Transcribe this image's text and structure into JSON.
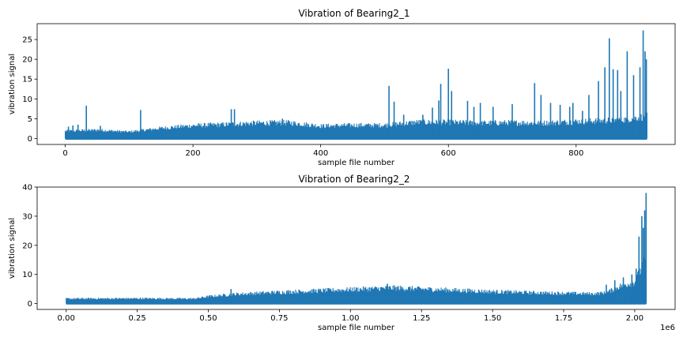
{
  "chart_data": [
    {
      "type": "line",
      "title": "Vibration of Bearing2_1",
      "xlabel": "sample file number",
      "ylabel": "vibration signal",
      "xlim": [
        -44,
        955
      ],
      "ylim": [
        -1.5,
        29
      ],
      "xticks": [
        0,
        200,
        400,
        600,
        800
      ],
      "xtick_labels": [
        "0",
        "200",
        "400",
        "600",
        "800"
      ],
      "yticks": [
        0,
        5,
        10,
        15,
        20,
        25
      ],
      "ytick_labels": [
        "0",
        "5",
        "10",
        "15",
        "20",
        "25"
      ],
      "offset_label": "",
      "color": "#1f77b4",
      "series": [
        {
          "x": [
            0,
            50,
            100,
            150,
            200,
            250,
            300,
            350,
            400,
            450,
            500,
            550,
            600,
            650,
            700,
            750,
            800,
            850,
            880,
            900,
            911
          ],
          "y": [
            2.0,
            2.3,
            1.8,
            2.8,
            3.5,
            3.8,
            4.2,
            4.3,
            3.4,
            3.6,
            3.6,
            4.4,
            4.4,
            4.2,
            4.3,
            4.2,
            4.6,
            4.9,
            5.2,
            5.8,
            6.0
          ]
        }
      ],
      "spikes": {
        "x": [
          5,
          12,
          20,
          33,
          55,
          118,
          260,
          265,
          340,
          507,
          515,
          530,
          560,
          575,
          585,
          588,
          600,
          605,
          630,
          640,
          650,
          670,
          700,
          735,
          745,
          760,
          775,
          790,
          795,
          810,
          820,
          835,
          845,
          852,
          858,
          865,
          870,
          880,
          890,
          900,
          905,
          908,
          910
        ],
        "y": [
          3.0,
          3.3,
          3.5,
          8.3,
          3.2,
          7.2,
          7.4,
          7.4,
          5.0,
          13.3,
          9.3,
          6.0,
          6.0,
          7.8,
          9.6,
          13.8,
          17.6,
          12.0,
          9.5,
          8.0,
          9.0,
          8.0,
          8.7,
          14.0,
          11.0,
          9.0,
          8.5,
          8.0,
          9.0,
          7.0,
          11.0,
          14.5,
          18.0,
          25.3,
          17.5,
          17.3,
          12.0,
          22.0,
          16.0,
          18.0,
          27.3,
          22.0,
          20.0
        ]
      }
    },
    {
      "type": "line",
      "title": "Vibration of Bearing2_2",
      "xlabel": "sample file number",
      "ylabel": "vibration signal",
      "xlim": [
        -102000,
        2142000
      ],
      "ylim": [
        -2,
        40
      ],
      "xticks": [
        0,
        250000,
        500000,
        750000,
        1000000,
        1250000,
        1500000,
        1750000,
        2000000
      ],
      "xtick_labels": [
        "0.00",
        "0.25",
        "0.50",
        "0.75",
        "1.00",
        "1.25",
        "1.50",
        "1.75",
        "2.00"
      ],
      "yticks": [
        0,
        10,
        20,
        30,
        40
      ],
      "ytick_labels": [
        "0",
        "10",
        "20",
        "30",
        "40"
      ],
      "offset_label": "1e6",
      "color": "#1f77b4",
      "series": [
        {
          "x": [
            0,
            250000,
            450000,
            500000,
            600000,
            750000,
            900000,
            1000000,
            1150000,
            1250000,
            1400000,
            1500000,
            1650000,
            1750000,
            1850000,
            1900000,
            1950000,
            2000000,
            2020000,
            2040000
          ],
          "y": [
            1.8,
            1.9,
            1.8,
            2.6,
            3.5,
            4.2,
            4.8,
            5.2,
            5.8,
            5.4,
            4.8,
            4.4,
            4.0,
            3.8,
            3.6,
            4.0,
            6.5,
            8.0,
            12.0,
            16.0
          ]
        }
      ],
      "spikes": {
        "x": [
          580000,
          1130000,
          1900000,
          1930000,
          1960000,
          1990000,
          2005000,
          2015000,
          2025000,
          2030000,
          2035000,
          2040000
        ],
        "y": [
          5.0,
          6.8,
          6.5,
          8.0,
          9.0,
          10.0,
          12.0,
          23.0,
          30.0,
          26.0,
          32.0,
          38.0
        ]
      }
    }
  ]
}
